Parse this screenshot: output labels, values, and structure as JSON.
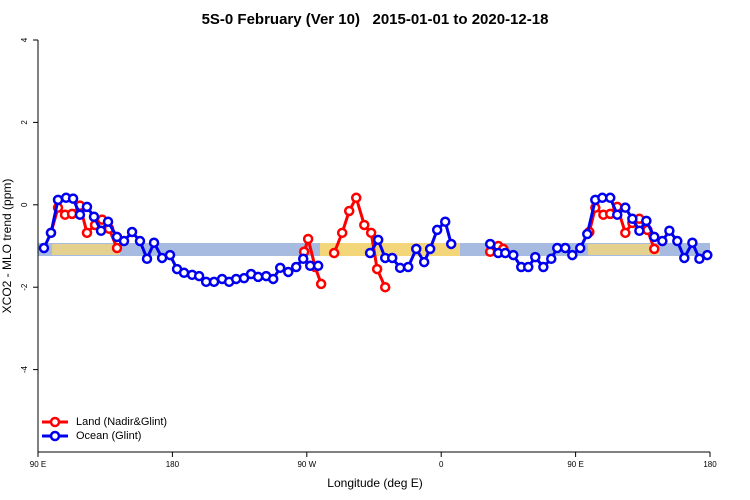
{
  "chart_data": {
    "type": "line",
    "title": "5S-0 February (Ver 10)   2015-01-01 to 2020-12-18",
    "x_label": "Longitude (deg E)",
    "y_label": "XCO2 - MLO trend (ppm)",
    "xlim": [
      90,
      540
    ],
    "ylim": [
      -6,
      4
    ],
    "xticks": [
      {
        "value": 90,
        "label": "90 E"
      },
      180,
      {
        "value": 270,
        "label": "90 W"
      },
      {
        "value": 360,
        "label": "0"
      },
      {
        "value": 450,
        "label": "90 E"
      },
      {
        "value": 540,
        "label": "180"
      }
    ],
    "yticks": [
      -4,
      -2,
      0,
      2,
      4
    ],
    "legend": "bottom-left",
    "series": [
      {
        "name": "Land (Nadir&Glint)",
        "color": "#ff0000",
        "x": [
          98.7,
          103.4,
          108.1,
          112.8,
          118.1,
          122.8,
          128.2,
          132.9,
          137.6,
          142.9,
          200,
          268.2,
          270.9,
          275.6,
          279.6,
          290,
          288.3,
          293.7,
          298.4,
          303.1,
          308.5,
          313.1,
          317.1,
          322.5,
          360,
          392.8,
          398.2,
          401.6,
          430,
          459.2,
          463.2,
          468.6,
          473.2,
          477.9,
          483.3,
          488,
          492.7,
          498.1,
          502.7
        ],
        "values": [
          -0.68,
          -0.07,
          -0.24,
          -0.22,
          -0.02,
          -0.68,
          -0.49,
          -0.36,
          -0.58,
          -1.05,
          null,
          -1.14,
          -0.83,
          -1.51,
          -1.92,
          null,
          -1.17,
          -0.68,
          -0.15,
          0.17,
          -0.49,
          -0.68,
          -1.56,
          -2.0,
          null,
          -1.14,
          -1.0,
          -1.07,
          null,
          -0.66,
          -0.07,
          -0.24,
          -0.22,
          -0.05,
          -0.68,
          -0.44,
          -0.34,
          -0.61,
          -1.07
        ]
      },
      {
        "name": "Ocean (Glint)",
        "color": "#0000ee",
        "x": [
          94,
          98.7,
          103.4,
          108.8,
          113.5,
          118.1,
          122.8,
          127.5,
          132.2,
          136.9,
          142.9,
          147.6,
          153,
          158.3,
          163,
          167.7,
          173.1,
          178.4,
          183.1,
          187.8,
          193.2,
          197.9,
          202.6,
          207.9,
          213.3,
          218,
          222.7,
          228,
          232.7,
          237.4,
          242.8,
          247.5,
          252.2,
          257.6,
          262.9,
          267.6,
          272.3,
          277.6,
          295,
          312.4,
          317.8,
          322.5,
          327.2,
          332.5,
          337.9,
          343.3,
          348.6,
          352.6,
          357.3,
          362.7,
          366.7,
          380,
          392.8,
          398.2,
          402.9,
          408.3,
          413.6,
          418.3,
          423,
          428.4,
          433.7,
          437.7,
          443.1,
          447.8,
          453.1,
          457.8,
          463.2,
          467.9,
          473.2,
          477.9,
          483.3,
          488,
          492.7,
          497.4,
          502.7,
          508.1,
          512.8,
          518.1,
          522.8,
          528.2,
          532.9,
          538.2
        ],
        "values": [
          -1.05,
          -0.68,
          0.12,
          0.17,
          0.15,
          -0.24,
          -0.05,
          -0.29,
          -0.63,
          -0.41,
          -0.78,
          -0.88,
          -0.66,
          -0.88,
          -1.31,
          -0.92,
          -1.29,
          -1.22,
          -1.56,
          -1.65,
          -1.7,
          -1.73,
          -1.87,
          -1.87,
          -1.8,
          -1.87,
          -1.8,
          -1.78,
          -1.68,
          -1.75,
          -1.73,
          -1.8,
          -1.53,
          -1.63,
          -1.51,
          -1.31,
          -1.48,
          -1.48,
          null,
          -1.17,
          -0.85,
          -1.29,
          -1.29,
          -1.53,
          -1.51,
          -1.07,
          -1.39,
          -1.07,
          -0.61,
          -0.41,
          -0.95,
          null,
          -0.95,
          -1.17,
          -1.17,
          -1.22,
          -1.51,
          -1.51,
          -1.27,
          -1.51,
          -1.31,
          -1.05,
          -1.05,
          -1.22,
          -1.05,
          -0.71,
          0.12,
          0.17,
          0.17,
          -0.24,
          -0.07,
          -0.34,
          -0.63,
          -0.39,
          -0.78,
          -0.88,
          -0.63,
          -0.88,
          -1.29,
          -0.92,
          -1.31,
          -1.22
        ]
      }
    ]
  }
}
